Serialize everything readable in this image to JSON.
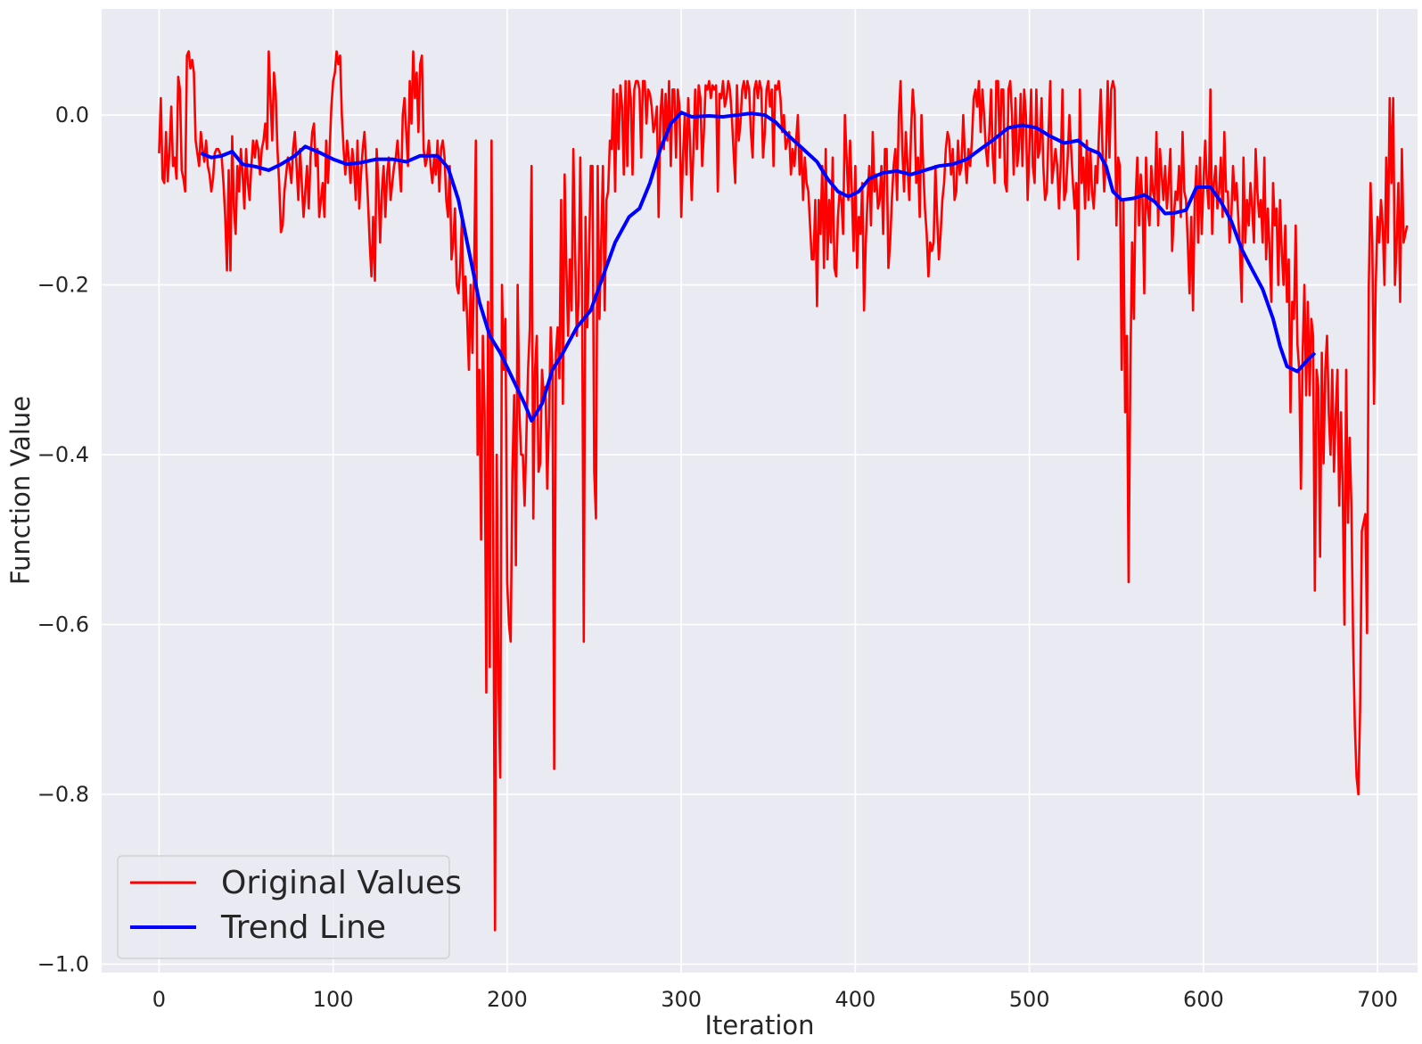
{
  "chart_data": {
    "type": "line",
    "xlabel": "Iteration",
    "ylabel": "Function Value",
    "xlim": [
      -33,
      723
    ],
    "ylim": [
      -1.01,
      0.125
    ],
    "x_ticks": [
      0,
      100,
      200,
      300,
      400,
      500,
      600,
      700
    ],
    "y_ticks": [
      0.0,
      -0.2,
      -0.4,
      -0.6,
      -0.8,
      -1.0
    ],
    "x_tick_labels": [
      "0",
      "100",
      "200",
      "300",
      "400",
      "500",
      "600",
      "700"
    ],
    "y_tick_labels": [
      "0.0",
      "−0.2",
      "−0.4",
      "−0.6",
      "−0.8",
      "−1.0"
    ],
    "grid": true,
    "legend_position": "lower-left",
    "colors": {
      "background": "#eaeaf2",
      "grid": "#ffffff",
      "original": "#ff0000",
      "trend": "#0000ff"
    },
    "series": [
      {
        "name": "Original Values",
        "color": "#ff0000",
        "x_start": 0,
        "x_step": 1,
        "values": [
          -0.045,
          0.02,
          -0.075,
          -0.08,
          -0.02,
          -0.078,
          -0.04,
          0.01,
          -0.06,
          -0.05,
          -0.075,
          0.045,
          0.03,
          -0.065,
          -0.075,
          -0.09,
          0.07,
          0.075,
          0.055,
          0.065,
          0.05,
          -0.03,
          -0.045,
          -0.06,
          -0.02,
          -0.04,
          -0.055,
          -0.03,
          -0.06,
          -0.07,
          -0.09,
          -0.075,
          -0.045,
          -0.04,
          -0.04,
          -0.045,
          -0.05,
          -0.08,
          -0.12,
          -0.183,
          -0.065,
          -0.183,
          -0.025,
          -0.11,
          -0.14,
          -0.06,
          -0.09,
          -0.04,
          -0.07,
          -0.11,
          -0.04,
          -0.08,
          -0.1,
          -0.06,
          -0.03,
          -0.05,
          -0.03,
          -0.04,
          -0.07,
          -0.04,
          -0.03,
          -0.01,
          -0.04,
          0.075,
          0.02,
          -0.03,
          0.05,
          0.025,
          -0.04,
          -0.08,
          -0.138,
          -0.13,
          -0.09,
          -0.07,
          -0.05,
          -0.06,
          -0.08,
          -0.04,
          -0.02,
          -0.06,
          -0.1,
          -0.04,
          -0.08,
          -0.12,
          -0.09,
          -0.06,
          -0.11,
          -0.05,
          -0.02,
          -0.01,
          -0.06,
          -0.04,
          -0.12,
          -0.1,
          -0.08,
          -0.12,
          -0.03,
          -0.08,
          -0.04,
          0.01,
          0.04,
          0.05,
          0.075,
          0.06,
          0.07,
          0.0,
          -0.04,
          -0.07,
          -0.03,
          -0.05,
          -0.08,
          -0.04,
          -0.06,
          -0.1,
          -0.03,
          -0.11,
          -0.07,
          -0.04,
          -0.02,
          -0.06,
          -0.1,
          -0.15,
          -0.19,
          -0.12,
          -0.195,
          -0.04,
          -0.08,
          -0.15,
          -0.09,
          -0.06,
          -0.12,
          -0.07,
          -0.05,
          -0.1,
          -0.08,
          -0.06,
          -0.05,
          -0.03,
          -0.06,
          -0.09,
          0.0,
          0.02,
          -0.02,
          -0.06,
          0.04,
          -0.01,
          0.075,
          0.02,
          0.05,
          -0.02,
          0.06,
          0.07,
          -0.04,
          -0.06,
          -0.05,
          -0.03,
          -0.06,
          -0.08,
          -0.05,
          -0.07,
          -0.03,
          -0.09,
          -0.04,
          -0.03,
          -0.05,
          -0.1,
          -0.12,
          -0.06,
          -0.17,
          -0.15,
          -0.11,
          -0.2,
          -0.21,
          -0.18,
          -0.12,
          -0.23,
          -0.19,
          -0.24,
          -0.3,
          -0.2,
          -0.28,
          -0.18,
          -0.03,
          -0.4,
          -0.3,
          -0.5,
          -0.26,
          -0.35,
          -0.68,
          -0.22,
          -0.65,
          -0.03,
          -0.5,
          -0.96,
          -0.4,
          -0.67,
          -0.78,
          -0.2,
          -0.3,
          -0.24,
          -0.55,
          -0.6,
          -0.62,
          -0.42,
          -0.33,
          -0.53,
          -0.2,
          -0.35,
          -0.4,
          -0.4,
          -0.46,
          -0.38,
          -0.3,
          -0.25,
          -0.06,
          -0.475,
          -0.3,
          -0.26,
          -0.42,
          -0.41,
          -0.3,
          -0.33,
          -0.32,
          -0.44,
          -0.36,
          -0.25,
          -0.3,
          -0.77,
          -0.28,
          -0.25,
          -0.31,
          -0.1,
          -0.34,
          -0.07,
          -0.18,
          -0.26,
          -0.17,
          -0.23,
          -0.04,
          -0.16,
          -0.26,
          -0.22,
          -0.05,
          -0.2,
          -0.62,
          -0.12,
          -0.25,
          -0.17,
          -0.06,
          -0.06,
          -0.42,
          -0.475,
          -0.06,
          -0.24,
          -0.15,
          -0.06,
          -0.23,
          -0.1,
          -0.09,
          -0.03,
          -0.04,
          0.03,
          -0.09,
          0.025,
          -0.04,
          0.035,
          0.01,
          -0.07,
          0.04,
          -0.06,
          0.04,
          0.02,
          -0.07,
          0.03,
          0.04,
          0.04,
          0.03,
          -0.05,
          0.04,
          0.04,
          -0.01,
          0.03,
          0.025,
          0.01,
          -0.02,
          -0.01,
          0.01,
          -0.12,
          0.0,
          0.03,
          -0.04,
          0.025,
          -0.03,
          0.04,
          -0.06,
          0.03,
          0.03,
          -0.05,
          0.03,
          0.01,
          -0.12,
          -0.05,
          0.0,
          -0.07,
          0.02,
          -0.03,
          -0.1,
          -0.04,
          0.03,
          -0.04,
          0.035,
          0.02,
          -0.06,
          -0.02,
          0.035,
          0.03,
          0.04,
          0.02,
          0.035,
          0.03,
          0.035,
          -0.09,
          0.025,
          0.02,
          0.04,
          0.01,
          0.02,
          0.04,
          0.03,
          0.0,
          -0.04,
          -0.08,
          0.035,
          -0.03,
          -0.01,
          0.03,
          0.04,
          0.02,
          0.04,
          0.03,
          -0.02,
          -0.05,
          0.03,
          0.04,
          0.02,
          0.04,
          0.03,
          -0.05,
          -0.02,
          0.03,
          0.04,
          0.01,
          0.03,
          -0.06,
          0.035,
          0.03,
          0.04,
          0.02,
          -0.02,
          0.0,
          -0.04,
          -0.03,
          -0.02,
          -0.07,
          -0.04,
          -0.06,
          -0.03,
          0.0,
          -0.07,
          -0.04,
          -0.1,
          -0.05,
          -0.08,
          -0.09,
          -0.13,
          -0.17,
          -0.17,
          -0.1,
          -0.225,
          -0.1,
          -0.14,
          -0.06,
          -0.18,
          -0.04,
          -0.17,
          -0.1,
          -0.15,
          -0.05,
          -0.18,
          -0.19,
          -0.12,
          -0.09,
          -0.1,
          -0.14,
          0.0,
          -0.05,
          -0.1,
          -0.03,
          -0.09,
          -0.16,
          -0.06,
          -0.18,
          -0.12,
          -0.14,
          -0.08,
          -0.23,
          -0.15,
          -0.1,
          -0.06,
          -0.13,
          -0.02,
          -0.09,
          -0.07,
          -0.11,
          -0.1,
          -0.06,
          -0.14,
          -0.04,
          -0.04,
          -0.18,
          -0.15,
          -0.1,
          -0.06,
          -0.04,
          -0.1,
          0.0,
          0.04,
          -0.04,
          -0.09,
          -0.02,
          -0.06,
          -0.1,
          -0.02,
          0.03,
          0.0,
          -0.08,
          -0.05,
          -0.12,
          0.0,
          -0.06,
          -0.11,
          -0.14,
          -0.19,
          -0.15,
          -0.16,
          -0.15,
          -0.06,
          -0.12,
          -0.17,
          -0.14,
          -0.1,
          -0.08,
          -0.04,
          -0.02,
          -0.03,
          -0.07,
          -0.04,
          -0.1,
          -0.09,
          -0.03,
          -0.07,
          -0.06,
          0.0,
          -0.05,
          -0.08,
          -0.04,
          -0.06,
          -0.03,
          0.02,
          0.03,
          0.01,
          0.04,
          -0.02,
          0.03,
          0.0,
          -0.04,
          -0.06,
          -0.02,
          0.03,
          -0.05,
          -0.08,
          0.04,
          0.04,
          -0.05,
          0.03,
          0.03,
          -0.08,
          -0.09,
          0.03,
          0.04,
          0.0,
          -0.07,
          0.02,
          -0.06,
          -0.04,
          0.025,
          -0.06,
          0.03,
          0.0,
          -0.1,
          -0.04,
          0.03,
          -0.06,
          -0.08,
          0.03,
          -0.05,
          -0.04,
          0.02,
          -0.06,
          -0.1,
          -0.09,
          -0.02,
          0.04,
          -0.08,
          -0.06,
          -0.04,
          -0.06,
          -0.11,
          -0.06,
          0.03,
          -0.1,
          -0.09,
          -0.05,
          0.0,
          -0.04,
          -0.08,
          -0.11,
          -0.08,
          -0.17,
          0.03,
          -0.08,
          -0.05,
          -0.11,
          -0.03,
          -0.1,
          -0.04,
          -0.09,
          -0.11,
          -0.06,
          -0.08,
          -0.02,
          0.03,
          -0.04,
          -0.09,
          -0.05,
          0.04,
          -0.05,
          0.03,
          0.04,
          0.03,
          -0.13,
          -0.05,
          -0.06,
          -0.3,
          -0.1,
          -0.35,
          -0.26,
          -0.55,
          -0.3,
          -0.15,
          -0.24,
          -0.1,
          -0.05,
          -0.13,
          -0.07,
          -0.1,
          -0.21,
          -0.05,
          -0.11,
          -0.13,
          -0.06,
          -0.09,
          -0.1,
          -0.02,
          -0.13,
          -0.04,
          -0.07,
          -0.1,
          -0.06,
          -0.11,
          -0.08,
          -0.04,
          -0.16,
          -0.12,
          -0.09,
          -0.1,
          -0.06,
          -0.12,
          -0.02,
          -0.09,
          -0.1,
          -0.15,
          -0.21,
          -0.12,
          -0.23,
          -0.1,
          -0.06,
          -0.15,
          -0.05,
          -0.14,
          -0.08,
          -0.03,
          -0.08,
          -0.11,
          0.03,
          -0.14,
          -0.08,
          -0.06,
          -0.11,
          -0.09,
          -0.05,
          -0.12,
          -0.02,
          -0.09,
          -0.09,
          -0.15,
          -0.12,
          -0.06,
          -0.1,
          -0.08,
          -0.12,
          -0.16,
          -0.22,
          -0.05,
          -0.15,
          -0.1,
          -0.13,
          -0.08,
          -0.11,
          -0.15,
          -0.04,
          -0.09,
          -0.12,
          -0.1,
          -0.15,
          -0.05,
          -0.17,
          -0.11,
          -0.16,
          -0.22,
          -0.08,
          -0.13,
          -0.11,
          -0.2,
          -0.1,
          -0.16,
          -0.2,
          -0.13,
          -0.22,
          -0.17,
          -0.35,
          -0.22,
          -0.24,
          -0.13,
          -0.27,
          -0.3,
          -0.44,
          -0.28,
          -0.2,
          -0.33,
          -0.22,
          -0.33,
          -0.24,
          -0.26,
          -0.56,
          -0.3,
          -0.32,
          -0.52,
          -0.28,
          -0.41,
          -0.3,
          -0.26,
          -0.35,
          -0.4,
          -0.3,
          -0.42,
          -0.35,
          -0.3,
          -0.46,
          -0.35,
          -0.44,
          -0.6,
          -0.3,
          -0.48,
          -0.38,
          -0.46,
          -0.62,
          -0.72,
          -0.78,
          -0.8,
          -0.7,
          -0.49,
          -0.48,
          -0.47,
          -0.61,
          -0.2,
          -0.08,
          -0.15,
          -0.34,
          -0.2,
          -0.12,
          -0.15,
          -0.1,
          -0.13,
          -0.2,
          -0.05,
          -0.15,
          0.02,
          -0.08,
          0.02,
          -0.2,
          -0.15,
          -0.08,
          -0.22,
          -0.04,
          -0.15,
          -0.14,
          -0.13
        ]
      },
      {
        "name": "Trend Line",
        "color": "#0000ff",
        "points": [
          [
            24,
            -0.045
          ],
          [
            30,
            -0.05
          ],
          [
            36,
            -0.048
          ],
          [
            42,
            -0.043
          ],
          [
            48,
            -0.058
          ],
          [
            56,
            -0.061
          ],
          [
            63,
            -0.065
          ],
          [
            70,
            -0.058
          ],
          [
            78,
            -0.048
          ],
          [
            84,
            -0.037
          ],
          [
            92,
            -0.044
          ],
          [
            100,
            -0.052
          ],
          [
            108,
            -0.058
          ],
          [
            116,
            -0.056
          ],
          [
            125,
            -0.052
          ],
          [
            134,
            -0.052
          ],
          [
            142,
            -0.055
          ],
          [
            150,
            -0.048
          ],
          [
            160,
            -0.048
          ],
          [
            166,
            -0.062
          ],
          [
            172,
            -0.1
          ],
          [
            178,
            -0.16
          ],
          [
            184,
            -0.22
          ],
          [
            190,
            -0.26
          ],
          [
            196,
            -0.28
          ],
          [
            203,
            -0.31
          ],
          [
            210,
            -0.34
          ],
          [
            214,
            -0.36
          ],
          [
            220,
            -0.34
          ],
          [
            226,
            -0.3
          ],
          [
            232,
            -0.28
          ],
          [
            240,
            -0.25
          ],
          [
            248,
            -0.23
          ],
          [
            255,
            -0.19
          ],
          [
            262,
            -0.15
          ],
          [
            270,
            -0.12
          ],
          [
            276,
            -0.11
          ],
          [
            282,
            -0.08
          ],
          [
            288,
            -0.04
          ],
          [
            294,
            -0.01
          ],
          [
            300,
            0.003
          ],
          [
            306,
            -0.002
          ],
          [
            316,
            -0.001
          ],
          [
            324,
            -0.002
          ],
          [
            332,
            0.0
          ],
          [
            340,
            0.002
          ],
          [
            348,
            0.0
          ],
          [
            354,
            -0.008
          ],
          [
            362,
            -0.025
          ],
          [
            370,
            -0.04
          ],
          [
            378,
            -0.055
          ],
          [
            384,
            -0.075
          ],
          [
            390,
            -0.09
          ],
          [
            396,
            -0.096
          ],
          [
            402,
            -0.09
          ],
          [
            408,
            -0.075
          ],
          [
            416,
            -0.068
          ],
          [
            424,
            -0.066
          ],
          [
            432,
            -0.07
          ],
          [
            440,
            -0.065
          ],
          [
            448,
            -0.06
          ],
          [
            456,
            -0.058
          ],
          [
            464,
            -0.052
          ],
          [
            472,
            -0.04
          ],
          [
            480,
            -0.028
          ],
          [
            488,
            -0.015
          ],
          [
            496,
            -0.012
          ],
          [
            504,
            -0.015
          ],
          [
            512,
            -0.025
          ],
          [
            520,
            -0.033
          ],
          [
            528,
            -0.03
          ],
          [
            534,
            -0.04
          ],
          [
            540,
            -0.045
          ],
          [
            544,
            -0.06
          ],
          [
            548,
            -0.09
          ],
          [
            553,
            -0.1
          ],
          [
            560,
            -0.098
          ],
          [
            566,
            -0.094
          ],
          [
            572,
            -0.102
          ],
          [
            578,
            -0.116
          ],
          [
            584,
            -0.115
          ],
          [
            590,
            -0.112
          ],
          [
            596,
            -0.085
          ],
          [
            604,
            -0.085
          ],
          [
            610,
            -0.102
          ],
          [
            616,
            -0.125
          ],
          [
            622,
            -0.158
          ],
          [
            628,
            -0.182
          ],
          [
            634,
            -0.205
          ],
          [
            640,
            -0.24
          ],
          [
            644,
            -0.272
          ],
          [
            648,
            -0.296
          ],
          [
            654,
            -0.302
          ],
          [
            660,
            -0.288
          ],
          [
            664,
            -0.28
          ]
        ]
      }
    ]
  }
}
